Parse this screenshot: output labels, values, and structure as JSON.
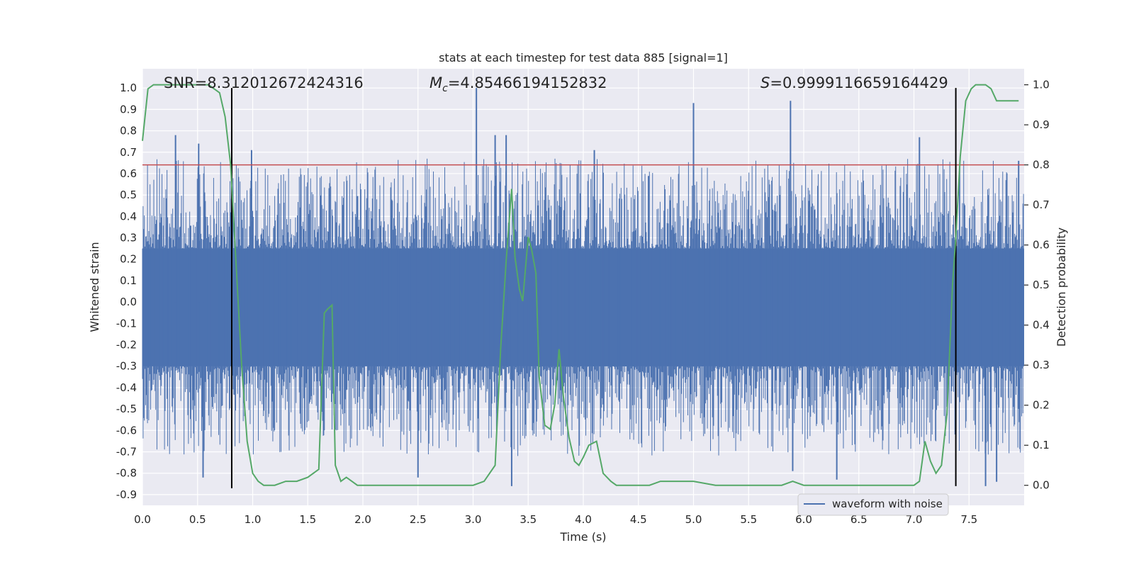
{
  "chart_data": {
    "type": "line",
    "title": "stats at each timestep for test data 885 [signal=1]",
    "xlabel": "Time (s)",
    "ylabel": "Whitened strain",
    "ylabel_right": "Detection probability",
    "xlim": [
      0,
      8
    ],
    "ylim": [
      -0.95,
      1.09
    ],
    "ylim_right": [
      -0.05,
      1.04
    ],
    "x_ticks": [
      0.0,
      0.5,
      1.0,
      1.5,
      2.0,
      2.5,
      3.0,
      3.5,
      4.0,
      4.5,
      5.0,
      5.5,
      6.0,
      6.5,
      7.0,
      7.5
    ],
    "x_tick_labels": [
      "0.0",
      "0.5",
      "1.0",
      "1.5",
      "2.0",
      "2.5",
      "3.0",
      "3.5",
      "4.0",
      "4.5",
      "5.0",
      "5.5",
      "6.0",
      "6.5",
      "7.0",
      "7.5"
    ],
    "y_ticks": [
      1.0,
      0.9,
      0.8,
      0.7,
      0.6,
      0.5,
      0.4,
      0.3,
      0.2,
      0.1,
      0.0,
      -0.1,
      -0.2,
      -0.3,
      -0.4,
      -0.5,
      -0.6,
      -0.7,
      -0.8,
      -0.9
    ],
    "y_tick_labels": [
      "1.0",
      "0.9",
      "0.8",
      "0.7",
      "0.6",
      "0.5",
      "0.4",
      "0.3",
      "0.2",
      "0.1",
      "0.0",
      "-0.1",
      "-0.2",
      "-0.3",
      "-0.4",
      "-0.5",
      "-0.6",
      "-0.7",
      "-0.8",
      "-0.9"
    ],
    "y_right_ticks": [
      1.0,
      0.9,
      0.8,
      0.7,
      0.6,
      0.5,
      0.4,
      0.3,
      0.2,
      0.1,
      0.0
    ],
    "y_right_tick_labels": [
      "1.0",
      "0.9",
      "0.8",
      "0.7",
      "0.6",
      "0.5",
      "0.4",
      "0.3",
      "0.2",
      "0.1",
      "0.0"
    ],
    "annotations": {
      "snr": "SNR=8.312012672424316",
      "mc_symbol": "M",
      "mc_sub": "c",
      "mc_value": "=4.85466194152832",
      "s_symbol": "S",
      "s_value": "=0.9999116659164429"
    },
    "threshold": {
      "value_right": 0.8,
      "color": "#c44e52"
    },
    "vertical_lines": [
      {
        "x": 0.81,
        "y_top": 1.0,
        "y_bottom": -0.87,
        "color": "#000000"
      },
      {
        "x": 7.38,
        "y_top": 1.0,
        "y_bottom": -0.86,
        "color": "#000000"
      }
    ],
    "series": [
      {
        "name": "waveform with noise",
        "axis": "left",
        "color": "#4c72b0",
        "dense_band": [
          -0.3,
          0.25
        ],
        "peak_spikes": [
          {
            "x": 0.3,
            "y": 0.78
          },
          {
            "x": 0.51,
            "y": 0.74
          },
          {
            "x": 0.99,
            "y": 0.71
          },
          {
            "x": 3.03,
            "y": 1.0
          },
          {
            "x": 3.2,
            "y": 0.78
          },
          {
            "x": 3.3,
            "y": 0.78
          },
          {
            "x": 4.1,
            "y": 0.71
          },
          {
            "x": 5.0,
            "y": 0.93
          },
          {
            "x": 5.88,
            "y": 0.94
          },
          {
            "x": 7.05,
            "y": 0.77
          },
          {
            "x": 7.95,
            "y": 0.66
          }
        ],
        "trough_spikes": [
          {
            "x": 0.55,
            "y": -0.82
          },
          {
            "x": 2.5,
            "y": -0.82
          },
          {
            "x": 3.35,
            "y": -0.86
          },
          {
            "x": 5.9,
            "y": -0.79
          },
          {
            "x": 6.3,
            "y": -0.83
          },
          {
            "x": 7.65,
            "y": -0.86
          },
          {
            "x": 7.75,
            "y": -0.84
          }
        ]
      },
      {
        "name": "Detection probability",
        "axis": "right",
        "color": "#55a868",
        "x": [
          0.0,
          0.05,
          0.1,
          0.2,
          0.3,
          0.4,
          0.5,
          0.6,
          0.65,
          0.7,
          0.75,
          0.8,
          0.85,
          0.9,
          0.95,
          1.0,
          1.05,
          1.1,
          1.15,
          1.2,
          1.3,
          1.4,
          1.5,
          1.55,
          1.6,
          1.65,
          1.68,
          1.72,
          1.75,
          1.8,
          1.85,
          1.9,
          1.95,
          2.0,
          2.1,
          2.2,
          2.3,
          2.5,
          2.7,
          2.9,
          3.0,
          3.1,
          3.2,
          3.25,
          3.3,
          3.35,
          3.38,
          3.42,
          3.45,
          3.5,
          3.53,
          3.57,
          3.6,
          3.65,
          3.7,
          3.74,
          3.78,
          3.82,
          3.87,
          3.92,
          3.96,
          4.0,
          4.05,
          4.12,
          4.18,
          4.25,
          4.3,
          4.4,
          4.5,
          4.6,
          4.7,
          4.8,
          4.9,
          5.0,
          5.2,
          5.4,
          5.6,
          5.8,
          5.9,
          6.0,
          6.2,
          6.5,
          6.8,
          7.0,
          7.05,
          7.1,
          7.15,
          7.2,
          7.25,
          7.3,
          7.35,
          7.38,
          7.42,
          7.47,
          7.52,
          7.56,
          7.6,
          7.65,
          7.7,
          7.75,
          7.8,
          7.85,
          7.9,
          7.95
        ],
        "y": [
          0.86,
          0.99,
          1.0,
          1.0,
          1.0,
          1.0,
          1.0,
          1.0,
          0.99,
          0.98,
          0.92,
          0.8,
          0.55,
          0.3,
          0.11,
          0.03,
          0.01,
          0.0,
          0.0,
          0.0,
          0.01,
          0.01,
          0.02,
          0.03,
          0.04,
          0.43,
          0.44,
          0.45,
          0.05,
          0.01,
          0.02,
          0.01,
          0.0,
          0.0,
          0.0,
          0.0,
          0.0,
          0.0,
          0.0,
          0.0,
          0.0,
          0.01,
          0.05,
          0.34,
          0.56,
          0.74,
          0.57,
          0.49,
          0.46,
          0.62,
          0.59,
          0.53,
          0.27,
          0.15,
          0.14,
          0.2,
          0.34,
          0.22,
          0.12,
          0.06,
          0.05,
          0.07,
          0.1,
          0.11,
          0.03,
          0.01,
          0.0,
          0.0,
          0.0,
          0.0,
          0.01,
          0.01,
          0.01,
          0.01,
          0.0,
          0.0,
          0.0,
          0.0,
          0.01,
          0.0,
          0.0,
          0.0,
          0.0,
          0.0,
          0.01,
          0.11,
          0.06,
          0.03,
          0.05,
          0.18,
          0.5,
          0.62,
          0.82,
          0.96,
          0.99,
          1.0,
          1.0,
          1.0,
          0.99,
          0.96,
          0.96,
          0.96,
          0.96,
          0.96
        ]
      }
    ],
    "legend": {
      "placement": "lower-right",
      "entries": [
        "waveform with noise"
      ]
    },
    "grid": true,
    "colors": {
      "background": "#eaeaf2",
      "grid": "#ffffff",
      "text": "#262626"
    }
  }
}
